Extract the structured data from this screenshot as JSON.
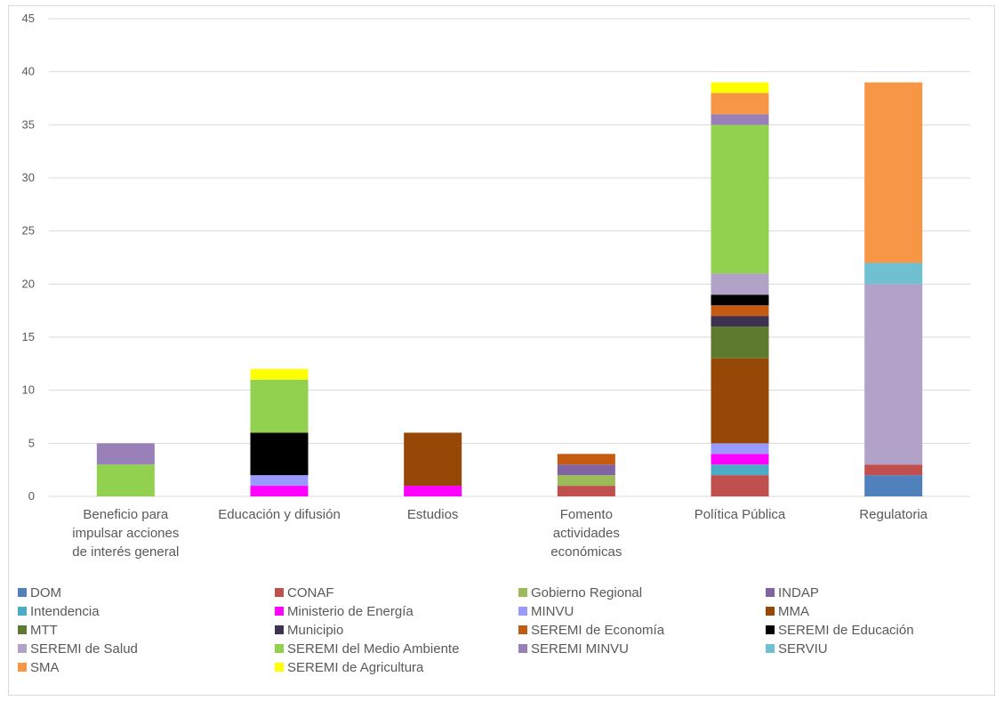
{
  "chart_data": {
    "type": "bar",
    "stacked": true,
    "title": "",
    "xlabel": "",
    "ylabel": "",
    "ylim": [
      0,
      45
    ],
    "yticks": [
      "0",
      "5",
      "10",
      "15",
      "20",
      "25",
      "30",
      "35",
      "40",
      "45"
    ],
    "grid": true,
    "legend_position": "bottom",
    "categories": [
      [
        "Beneficio para",
        "impulsar acciones",
        "de interés general"
      ],
      [
        "Educación y difusión"
      ],
      [
        "Estudios"
      ],
      [
        "Fomento",
        "actividades",
        "económicas"
      ],
      [
        "Política Pública"
      ],
      [
        "Regulatoria"
      ]
    ],
    "series": [
      {
        "name": "DOM",
        "color": "#4f81bd",
        "values": [
          0,
          0,
          0,
          0,
          0,
          2
        ]
      },
      {
        "name": "CONAF",
        "color": "#c0504d",
        "values": [
          0,
          0,
          0,
          1,
          2,
          1
        ]
      },
      {
        "name": "Gobierno Regional",
        "color": "#9bbb59",
        "values": [
          0,
          0,
          0,
          1,
          0,
          0
        ]
      },
      {
        "name": "INDAP",
        "color": "#8064a2",
        "values": [
          0,
          0,
          0,
          1,
          0,
          0
        ]
      },
      {
        "name": "Intendencia",
        "color": "#4bacc6",
        "values": [
          0,
          0,
          0,
          0,
          1,
          0
        ]
      },
      {
        "name": "Ministerio de Energía",
        "color": "#ff00ff",
        "values": [
          0,
          1,
          1,
          0,
          1,
          0
        ]
      },
      {
        "name": "MINVU",
        "color": "#9999ff",
        "values": [
          0,
          1,
          0,
          0,
          1,
          0
        ]
      },
      {
        "name": "MMA",
        "color": "#974806",
        "values": [
          0,
          0,
          5,
          0,
          8,
          0
        ]
      },
      {
        "name": "MTT",
        "color": "#5e7a2e",
        "values": [
          0,
          0,
          0,
          0,
          3,
          0
        ]
      },
      {
        "name": "Municipio",
        "color": "#3f3151",
        "values": [
          0,
          0,
          0,
          0,
          1,
          0
        ]
      },
      {
        "name": "SEREMI de Economía",
        "color": "#c55a11",
        "values": [
          0,
          0,
          0,
          1,
          1,
          0
        ]
      },
      {
        "name": "SEREMI de Educación",
        "color": "#000000",
        "values": [
          0,
          4,
          0,
          0,
          1,
          0
        ]
      },
      {
        "name": "SEREMI de Salud",
        "color": "#b2a2c7",
        "values": [
          0,
          0,
          0,
          0,
          2,
          17
        ]
      },
      {
        "name": "SEREMI del Medio Ambiente",
        "color": "#92d050",
        "values": [
          3,
          5,
          0,
          0,
          14,
          0
        ]
      },
      {
        "name": "SEREMI MINVU",
        "color": "#9a80b8",
        "values": [
          2,
          0,
          0,
          0,
          1,
          0
        ]
      },
      {
        "name": "SERVIU",
        "color": "#6fc0d0",
        "values": [
          0,
          0,
          0,
          0,
          0,
          2
        ]
      },
      {
        "name": "SMA",
        "color": "#f79646",
        "values": [
          0,
          0,
          0,
          0,
          2,
          17
        ]
      },
      {
        "name": "SEREMI de Agricultura",
        "color": "#ffff00",
        "values": [
          0,
          1,
          0,
          0,
          1,
          0
        ]
      }
    ]
  }
}
